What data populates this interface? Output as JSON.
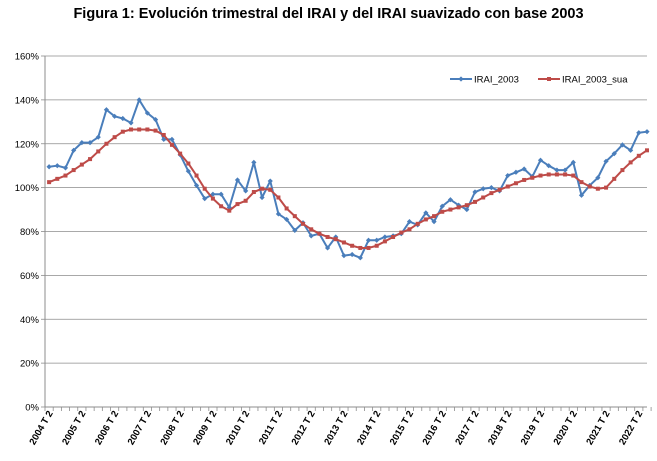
{
  "chart_data": {
    "type": "line",
    "title": "Figura 1: Evolución trimestral del IRAI y del IRAI suavizado con base 2003",
    "xlabel": "",
    "ylabel": "",
    "ylim": [
      0,
      160
    ],
    "yticks": [
      0,
      20,
      40,
      60,
      80,
      100,
      120,
      140,
      160
    ],
    "ytick_labels": [
      "0%",
      "20%",
      "40%",
      "60%",
      "80%",
      "100%",
      "120%",
      "140%",
      "160%"
    ],
    "xtick_labels": [
      "2004 T 2",
      "2005 T 2",
      "2006 T 2",
      "2007 T 2",
      "2008 T 2",
      "2009 T 2",
      "2010 T 2",
      "2011 T 2",
      "2012 T 2",
      "2013 T 2",
      "2014 T 2",
      "2015 T 2",
      "2016 T 2",
      "2017 T 2",
      "2018 T 2",
      "2019 T 2",
      "2020 T 2",
      "2021 T 2",
      "2022 T 2"
    ],
    "legend_position": "top-right",
    "series": [
      {
        "name": "IRAI_2003",
        "color": "#4a7ebb",
        "values": [
          109.5,
          110,
          109,
          117,
          120.5,
          120.5,
          123,
          135.5,
          132.5,
          131.5,
          129.5,
          140,
          134,
          131,
          122,
          122,
          115,
          107.5,
          101,
          95,
          97,
          97,
          91,
          103.5,
          98.5,
          111.5,
          95.5,
          103,
          88,
          85.5,
          80.5,
          84,
          78,
          79,
          72.5,
          77.5,
          69,
          69.5,
          68,
          76,
          76,
          77.5,
          78,
          79,
          84.5,
          83,
          88.5,
          84.5,
          91.5,
          94.5,
          92,
          90,
          98,
          99.5,
          100,
          98.5,
          105.5,
          107,
          108.5,
          105,
          112.5,
          110,
          108,
          108,
          111.5,
          96.5,
          101,
          104.5,
          112,
          115.5,
          119.5,
          117,
          125,
          125.5
        ]
      },
      {
        "name": "IRAI_2003_sua",
        "color": "#be4b48",
        "values": [
          102.5,
          104,
          105.5,
          108,
          110.5,
          113,
          116.5,
          120,
          123,
          125.5,
          126.5,
          126.5,
          126.5,
          126,
          124,
          119.5,
          115.5,
          111,
          105.5,
          99.5,
          95,
          91.5,
          89.5,
          92.5,
          94,
          98,
          99.5,
          99,
          95.5,
          90.5,
          87,
          83.5,
          81,
          79,
          77.5,
          76.5,
          75,
          73.5,
          72.5,
          72.5,
          73.5,
          75.5,
          77.5,
          79.5,
          81,
          83.5,
          85.5,
          87,
          89,
          90,
          91,
          92,
          93.5,
          95.5,
          97.5,
          99,
          100.5,
          102,
          103.5,
          104.5,
          105.5,
          106,
          106,
          106,
          105.5,
          102.5,
          100.5,
          99.5,
          100,
          104,
          108,
          111.5,
          114.5,
          117
        ]
      }
    ]
  }
}
